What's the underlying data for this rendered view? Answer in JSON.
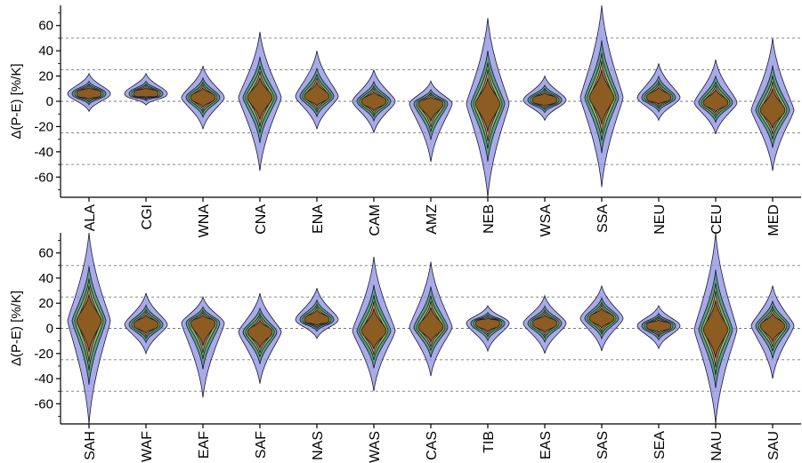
{
  "chart_data": [
    {
      "type": "violin",
      "ylabel": "Δ(P-E) [%/K]",
      "ylim": [
        -76,
        76
      ],
      "yticks": [
        -60,
        -40,
        -20,
        0,
        20,
        40,
        60
      ],
      "dashed_gridlines_at": [
        -50,
        -25,
        0,
        25,
        50
      ],
      "series_colors": [
        "#8c8fe0",
        "#3f9a5a",
        "#b7c94a",
        "#d26e55",
        "#8a5a1e"
      ],
      "categories": [
        "ALA",
        "CGI",
        "WNA",
        "CNA",
        "ENA",
        "CAM",
        "AMZ",
        "NEB",
        "WSA",
        "SSA",
        "NEU",
        "CEU",
        "MED"
      ],
      "ranges": [
        [
          -8,
          22
        ],
        [
          -3,
          22
        ],
        [
          -22,
          28
        ],
        [
          -55,
          55
        ],
        [
          -22,
          40
        ],
        [
          -25,
          25
        ],
        [
          -48,
          16
        ],
        [
          -76,
          66
        ],
        [
          -15,
          20
        ],
        [
          -68,
          76
        ],
        [
          -15,
          30
        ],
        [
          -26,
          33
        ],
        [
          -55,
          50
        ]
      ],
      "centers": [
        6,
        6,
        3,
        3,
        4,
        0,
        -2,
        -2,
        1,
        3,
        3,
        -1,
        -7
      ]
    },
    {
      "type": "violin",
      "ylabel": "Δ(P-E) [%/K]",
      "ylim": [
        -76,
        76
      ],
      "yticks": [
        -60,
        -40,
        -20,
        0,
        20,
        40,
        60
      ],
      "dashed_gridlines_at": [
        -50,
        -25,
        0,
        25,
        50
      ],
      "series_colors": [
        "#8c8fe0",
        "#3f9a5a",
        "#b7c94a",
        "#d26e55",
        "#8a5a1e"
      ],
      "categories": [
        "SAH",
        "WAF",
        "EAF",
        "SAF",
        "NAS",
        "WAS",
        "CAS",
        "TIB",
        "EAS",
        "SAS",
        "SEA",
        "NAU",
        "SAU"
      ],
      "ranges": [
        [
          -76,
          76
        ],
        [
          -20,
          28
        ],
        [
          -55,
          25
        ],
        [
          -44,
          28
        ],
        [
          -8,
          32
        ],
        [
          -50,
          57
        ],
        [
          -38,
          53
        ],
        [
          -18,
          18
        ],
        [
          -20,
          26
        ],
        [
          -18,
          34
        ],
        [
          -16,
          18
        ],
        [
          -76,
          76
        ],
        [
          -40,
          34
        ]
      ],
      "centers": [
        6,
        3,
        4,
        -3,
        7,
        -2,
        1,
        4,
        4,
        8,
        2,
        -1,
        2
      ]
    }
  ]
}
